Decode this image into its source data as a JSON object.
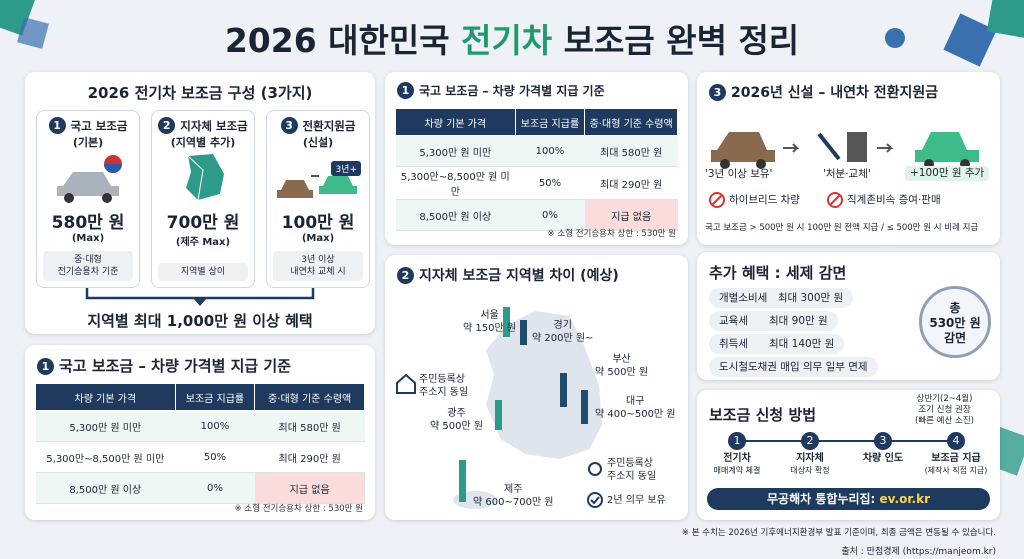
{
  "header": {
    "title_prefix": "2026 대한민국 ",
    "title_highlight": "전기차",
    "title_suffix": " 보조금 완벽 정리"
  },
  "composition": {
    "title": "2026 전기차 보조금 구성 (3가지)",
    "items": [
      {
        "number": "1",
        "name": "국고 보조금",
        "sub": "(기본)",
        "amount": "580만 원",
        "max": "(Max)",
        "note": [
          "중·대형",
          "전기승용차 기준"
        ]
      },
      {
        "number": "2",
        "name": "지자체 보조금",
        "sub": "(지역별 추가)",
        "amount": "700만 원",
        "max": "(제주 Max)",
        "note": [
          "지역별 상이"
        ]
      },
      {
        "number": "3",
        "name": "전환지원금",
        "sub": "(신설)",
        "amount": "100만 원",
        "max": "(Max)",
        "note": [
          "3년 이상",
          "내연차 교체 시"
        ]
      }
    ],
    "badge": "3년+",
    "summary": "지역별 최대 1,000만 원 이상 혜택"
  },
  "national_table": {
    "number": "1",
    "title": "국고 보조금 – 차량 가격별 지급 기준",
    "headers": [
      "차량 기본 가격",
      "보조금 지급률",
      "중·대형 기준 수령액"
    ],
    "rows": [
      [
        "5,300만 원 미만",
        "100%",
        "최대 580만 원"
      ],
      [
        "5,300만~8,500만 원 미만",
        "50%",
        "최대 290만 원"
      ],
      [
        "8,500만 원 이상",
        "0%",
        "지급 없음"
      ]
    ],
    "note": "※ 소형 전기승용차 상한 : 530만 원"
  },
  "regional": {
    "number": "2",
    "title": "지자체 보조금 지역별 차이 (예상)",
    "regions": [
      {
        "name": "서울",
        "amount": "약 150만 원"
      },
      {
        "name": "경기",
        "amount": "약 200만 원~"
      },
      {
        "name": "부산",
        "amount": "약 500만 원"
      },
      {
        "name": "대구",
        "amount": "약 400~500만 원"
      },
      {
        "name": "광주",
        "amount": "약 500만 원"
      },
      {
        "name": "제주",
        "amount": "약 600~700만 원"
      }
    ],
    "address_note": [
      "주민등록상",
      "주소지 동일"
    ],
    "holding": "2년 의무 보유"
  },
  "conversion": {
    "number": "3",
    "title": "2026년 신설 – 내연차 전환지원금",
    "steps": [
      "'3년 이상 보유'",
      "'처분·교체'",
      "+100만 원 추가"
    ],
    "excluded": [
      "하이브리드 차량",
      "직계존비속 증여·판매"
    ],
    "note": "국고 보조금 > 500만 원 시 100만 원 전액 지급 / ≤ 500만 원 시 비례 지급"
  },
  "tax": {
    "title": "추가 혜택 : 세제 감면",
    "items": [
      {
        "name": "개별소비세",
        "amount": "최대 300만 원"
      },
      {
        "name": "교육세",
        "amount": "최대 90만 원"
      },
      {
        "name": "취득세",
        "amount": "최대 140만 원"
      },
      {
        "name": "도시철도채권 매입 의무 일부 면제"
      }
    ],
    "total": [
      "총",
      "530만 원",
      "감면"
    ]
  },
  "apply": {
    "title": "보조금 신청 방법",
    "early": [
      "상반기(2~4월)",
      "조기 신청 권장",
      "(빠른 예산 소진)"
    ],
    "steps": [
      {
        "number": "1",
        "label": [
          "전기차",
          "매매계약 체결"
        ]
      },
      {
        "number": "2",
        "label": [
          "지자체",
          "대상자 확정"
        ]
      },
      {
        "number": "3",
        "label": [
          "차량 인도"
        ]
      },
      {
        "number": "4",
        "label": [
          "보조금 지급",
          "(제작사 직접 지급)"
        ]
      }
    ],
    "portal": "무공해차 통합누리집: ",
    "url": "ev.or.kr"
  },
  "footer": {
    "note": "※ 본 수치는 2026년 기후에너지환경부 발표 기준이며, 최종 금액은 변동될 수 있습니다.",
    "source": "출처 : 만점경제 (https://manjeom.kr)"
  }
}
